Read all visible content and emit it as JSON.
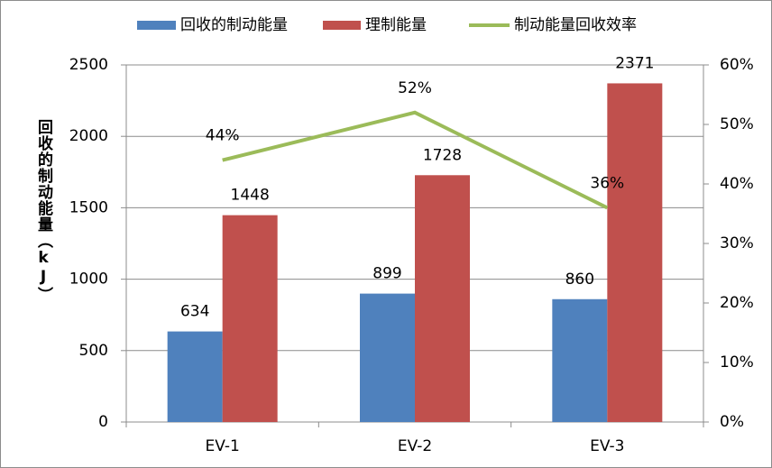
{
  "chart_data": {
    "type": "bar",
    "categories": [
      "EV-1",
      "EV-2",
      "EV-3"
    ],
    "y_label": "回收的制动能量（kJ）",
    "ylim": [
      0,
      2500
    ],
    "yticks": [
      0,
      500,
      1000,
      1500,
      2000,
      2500
    ],
    "y2lim": [
      0,
      60
    ],
    "y2ticks": [
      {
        "value": 0,
        "label": "0%"
      },
      {
        "value": 10,
        "label": "10%"
      },
      {
        "value": 20,
        "label": "20%"
      },
      {
        "value": 30,
        "label": "30%"
      },
      {
        "value": 40,
        "label": "40%"
      },
      {
        "value": 50,
        "label": "50%"
      },
      {
        "value": 60,
        "label": "60%"
      }
    ],
    "grid": true,
    "legend": "top",
    "series": [
      {
        "name": "回收的制动能量",
        "color": "#4f81bd",
        "values": [
          634,
          899,
          860
        ]
      },
      {
        "name": "理制能量",
        "color": "#c0504d",
        "values": [
          1448,
          1728,
          2371
        ]
      },
      {
        "name": "制动能量回收效率",
        "color": "#9bbb59",
        "type": "line",
        "axis": "y2",
        "values": [
          44,
          52,
          36
        ],
        "value_labels": [
          "44%",
          "52%",
          "36%"
        ]
      }
    ]
  }
}
